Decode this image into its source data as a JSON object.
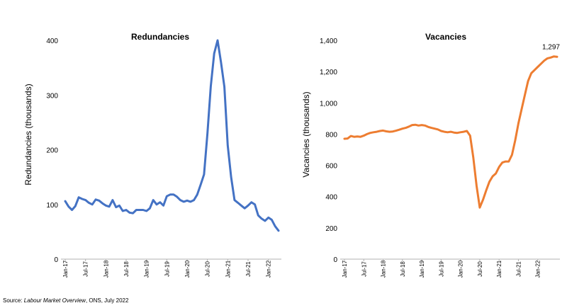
{
  "source": {
    "prefix": "Source: ",
    "italic": "Labour Market Overview",
    "suffix": ", ONS, July 2022"
  },
  "chart_data": [
    {
      "type": "line",
      "title": "Redundancies",
      "ylabel": "Redundancies (thousands)",
      "xlabel": "",
      "color": "#4472C4",
      "ylim": [
        0,
        400
      ],
      "yticks": [
        0,
        100,
        200,
        300,
        400
      ],
      "ytick_labels": [
        "0",
        "100",
        "200",
        "300",
        "400"
      ],
      "xtick_labels": [
        "Jan-17",
        "Jul-17",
        "Jan-18",
        "Jul-18",
        "Jan-19",
        "Jul-19",
        "Jan-20",
        "Jul-20",
        "Jan-21",
        "Jul-21",
        "Jan-22"
      ],
      "x_start": "Jan-17",
      "x_end": "May-22",
      "grid": false,
      "series": [
        {
          "values": [
            106,
            96,
            90,
            97,
            113,
            110,
            108,
            103,
            100,
            109,
            107,
            102,
            98,
            96,
            108,
            95,
            98,
            88,
            90,
            85,
            84,
            90,
            90,
            90,
            88,
            93,
            108,
            100,
            104,
            98,
            115,
            118,
            118,
            114,
            108,
            105,
            107,
            105,
            108,
            118,
            136,
            155,
            230,
            316,
            376,
            400,
            360,
            315,
            208,
            150,
            108,
            103,
            98,
            93,
            98,
            104,
            100,
            80,
            74,
            70,
            76,
            72,
            60,
            52
          ]
        }
      ]
    },
    {
      "type": "line",
      "title": "Vacancies",
      "ylabel": "Vacancies (thousands)",
      "xlabel": "",
      "color": "#ED7D31",
      "ylim": [
        0,
        1400
      ],
      "yticks": [
        0,
        200,
        400,
        600,
        800,
        1000,
        1200,
        1400
      ],
      "ytick_labels": [
        "0",
        "200",
        "400",
        "600",
        "800",
        "1,000",
        "1,200",
        "1,400"
      ],
      "xtick_labels": [
        "Jan-17",
        "Jul-17",
        "Jan-18",
        "Jul-18",
        "Jan-19",
        "Jul-19",
        "Jan-20",
        "Jul-20",
        "Jan-21",
        "Jul-21",
        "Jan-22"
      ],
      "x_start": "Jan-17",
      "x_end": "Jun-22",
      "grid": false,
      "annotation": "1,297",
      "series": [
        {
          "values": [
            770,
            772,
            788,
            783,
            785,
            783,
            790,
            800,
            808,
            812,
            815,
            820,
            823,
            818,
            815,
            817,
            822,
            828,
            835,
            840,
            848,
            858,
            860,
            855,
            858,
            855,
            846,
            840,
            835,
            830,
            820,
            815,
            812,
            815,
            810,
            808,
            812,
            815,
            820,
            790,
            650,
            470,
            330,
            380,
            440,
            495,
            530,
            548,
            590,
            618,
            625,
            625,
            668,
            760,
            870,
            960,
            1050,
            1140,
            1190,
            1210,
            1230,
            1250,
            1270,
            1285,
            1290,
            1297,
            1295
          ]
        }
      ]
    }
  ]
}
